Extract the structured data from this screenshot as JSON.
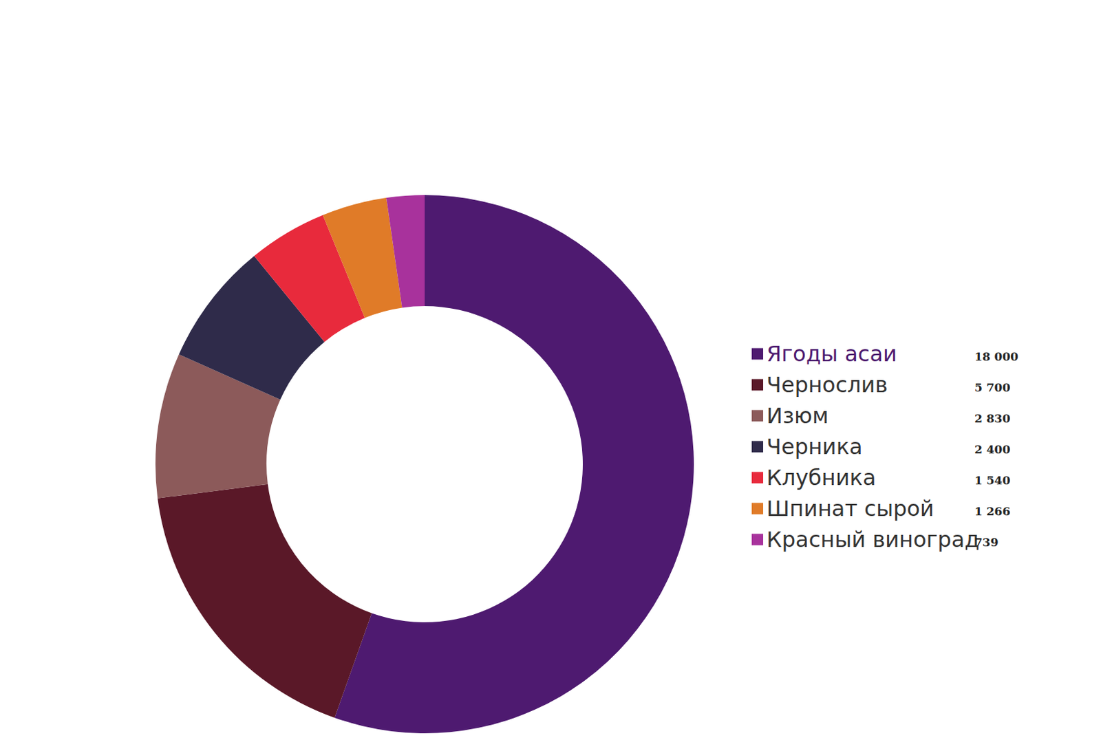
{
  "chart_data": {
    "type": "pie",
    "categories": [
      "Ягоды асаи",
      "Чернослив",
      "Изюм",
      "Черника",
      "Клубника",
      "Шпинат сырой",
      "Красный виноград"
    ],
    "values": [
      18000,
      5700,
      2830,
      2400,
      1540,
      1266,
      739
    ],
    "value_labels": [
      "18 000",
      "5 700",
      "2 830",
      "2 400",
      "1 540",
      "1 266",
      "739"
    ],
    "colors": [
      "#4e1a70",
      "#5a1828",
      "#8c5a5a",
      "#2f2b4a",
      "#e82a3c",
      "#e07b28",
      "#a8329c"
    ],
    "legend": "right",
    "data_labels": false
  }
}
